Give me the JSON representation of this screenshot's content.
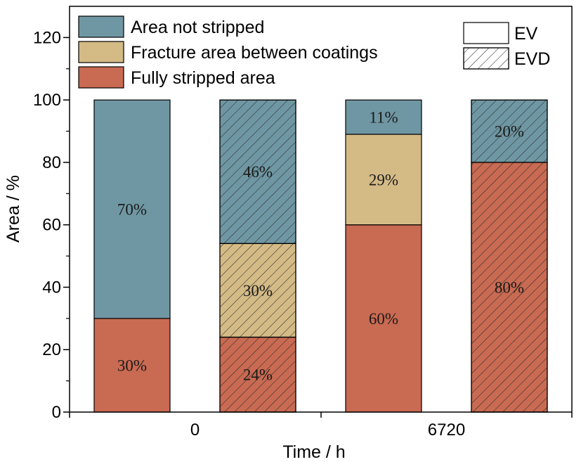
{
  "chart_data": {
    "type": "bar",
    "stacked": true,
    "xlabel": "Time / h",
    "ylabel": "Area / %",
    "ylim": [
      0,
      130
    ],
    "yticks": [
      0,
      20,
      40,
      60,
      80,
      100,
      120
    ],
    "grid": false,
    "groups": [
      {
        "tick_label": "0",
        "bars": [
          {
            "style": "EV",
            "segments": [
              {
                "series": "Fully stripped area",
                "value": 30,
                "label": "30%"
              },
              {
                "series": "Area not stripped",
                "value": 70,
                "label": "70%"
              }
            ]
          },
          {
            "style": "EVD",
            "segments": [
              {
                "series": "Fully stripped area",
                "value": 24,
                "label": "24%"
              },
              {
                "series": "Fracture area between coatings",
                "value": 30,
                "label": "30%"
              },
              {
                "series": "Area not stripped",
                "value": 46,
                "label": "46%"
              }
            ]
          }
        ]
      },
      {
        "tick_label": "6720",
        "bars": [
          {
            "style": "EV",
            "segments": [
              {
                "series": "Fully stripped area",
                "value": 60,
                "label": "60%"
              },
              {
                "series": "Fracture area between coatings",
                "value": 29,
                "label": "29%"
              },
              {
                "series": "Area not stripped",
                "value": 11,
                "label": "11%"
              }
            ]
          },
          {
            "style": "EVD",
            "segments": [
              {
                "series": "Fully stripped area",
                "value": 80,
                "label": "80%"
              },
              {
                "series": "Area not stripped",
                "value": 20,
                "label": "20%"
              }
            ]
          }
        ]
      }
    ],
    "legend": {
      "series": [
        {
          "name": "Area not stripped",
          "color": "#6f97a3"
        },
        {
          "name": "Fracture area between coatings",
          "color": "#d4bb86"
        },
        {
          "name": "Fully stripped area",
          "color": "#c96a52"
        }
      ],
      "styles": [
        {
          "name": "EV",
          "hatched": false
        },
        {
          "name": "EVD",
          "hatched": true
        }
      ],
      "placement": "top"
    }
  }
}
